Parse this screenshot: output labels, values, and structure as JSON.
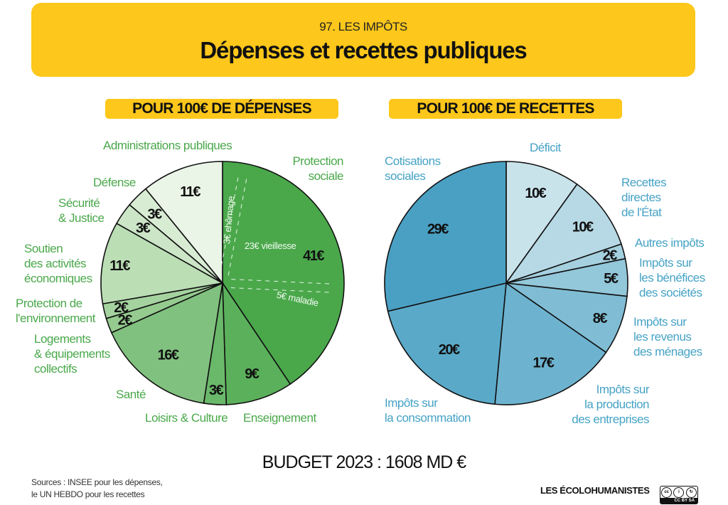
{
  "header": {
    "kicker": "97. LES IMPÔTS",
    "title": "Dépenses et recettes publiques"
  },
  "chart_data": [
    {
      "type": "pie",
      "title": "POUR 100€ DE DÉPENSES",
      "start": "12 o'clock, clockwise",
      "unit": "€",
      "categories": [
        "Protection sociale",
        "Enseignement",
        "Loisirs & Culture",
        "Santé",
        "Logements & équipements collectifs",
        "Protection de l'environnement",
        "Soutien des activités économiques",
        "Sécurité & Justice",
        "Défense",
        "Administrations publiques"
      ],
      "values": [
        41,
        9,
        3,
        16,
        2,
        2,
        11,
        3,
        3,
        11
      ],
      "value_labels": [
        "41€",
        "9€",
        "3€",
        "16€",
        "2€",
        "2€",
        "11€",
        "3€",
        "3€",
        "11€"
      ],
      "colors": [
        "#4aa84b",
        "#5bb15b",
        "#6ab86a",
        "#81c17f",
        "#95cb8f",
        "#a5d39f",
        "#bbdeb5",
        "#cbe5c6",
        "#d8ecd3",
        "#eaf4e7"
      ],
      "sub_breakdown": {
        "parent": "Protection sociale",
        "items": [
          {
            "label": "3€ chômage",
            "value": 3
          },
          {
            "label": "23€ vieillesse",
            "value": 23
          },
          {
            "label": "5€ maladie",
            "value": 5
          }
        ]
      }
    },
    {
      "type": "pie",
      "title": "POUR 100€ DE RECETTES",
      "start": "12 o'clock, clockwise",
      "unit": "€",
      "categories": [
        "Déficit",
        "Recettes directes de l'État",
        "Autres impôts",
        "Impôts sur les bénéfices des sociétés",
        "Impôts sur les revenus des ménages",
        "Impôts sur la production des entreprises",
        "Impôts sur la consommation",
        "Cotisations sociales"
      ],
      "values": [
        10,
        10,
        2,
        5,
        8,
        17,
        20,
        29
      ],
      "value_labels": [
        "10€",
        "10€",
        "2€",
        "5€",
        "8€",
        "17€",
        "20€",
        "29€"
      ],
      "colors": [
        "#c9e3eb",
        "#b6d9e5",
        "#a5d0df",
        "#93c7da",
        "#80bdd4",
        "#6db3cf",
        "#5aa9c9",
        "#4aa0c3"
      ]
    }
  ],
  "labels": {
    "dep": [
      "Protection\nsociale",
      "Enseignement",
      "Loisirs & Culture",
      "Santé",
      "Logements\n& équipements\ncollectifs",
      "Protection de\nl'environnement",
      "Soutien\ndes activités\néconomiques",
      "Sécurité\n& Justice",
      "Défense",
      "Administrations publiques"
    ],
    "rec": [
      "Déficit",
      "Recettes\ndirectes\nde l'État",
      "Autres impôts",
      "Impôts sur\nles bénéfices\ndes sociétés",
      "Impôts sur\nles revenus\ndes ménages",
      "Impôts sur\nla production\ndes entreprises",
      "Impôts sur\nla consommation",
      "Cotisations\nsociales"
    ]
  },
  "footer": {
    "budget": "BUDGET 2023 : 1608  MD €",
    "sources": "Sources : INSEE pour les dépenses,\nle UN HEBDO pour les recettes",
    "brand": "LES ÉCOLOHUMANISTES",
    "license": "CC BY SA"
  }
}
